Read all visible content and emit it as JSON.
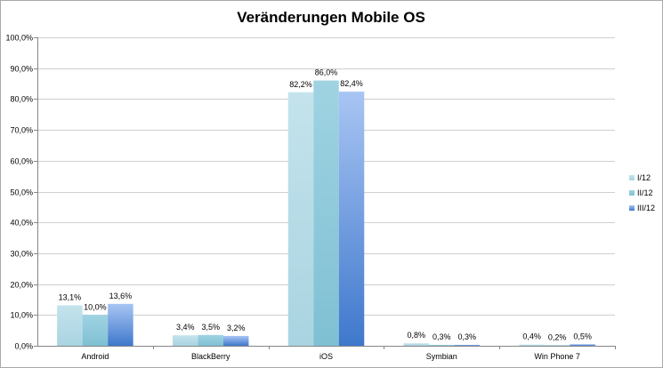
{
  "chart_data": {
    "type": "bar",
    "title": "Veränderungen Mobile OS",
    "categories": [
      "Android",
      "BlackBerry",
      "iOS",
      "Symbian",
      "Win Phone 7"
    ],
    "series": [
      {
        "name": "I/12",
        "values": [
          13.1,
          3.4,
          82.2,
          0.8,
          0.4
        ],
        "labels": [
          "13,1%",
          "3,4%",
          "82,2%",
          "0,8%",
          "0,4%"
        ],
        "color": "#b7dde8"
      },
      {
        "name": "II/12",
        "values": [
          10.0,
          3.5,
          86.0,
          0.3,
          0.2
        ],
        "labels": [
          "10,0%",
          "3,5%",
          "86,0%",
          "0,3%",
          "0,2%"
        ],
        "color": "#93cddd"
      },
      {
        "name": "III/12",
        "values": [
          13.6,
          3.2,
          82.4,
          0.3,
          0.5
        ],
        "labels": [
          "13,6%",
          "3,2%",
          "82,4%",
          "0,3%",
          "0,5%"
        ],
        "color": "#4f81bd"
      }
    ],
    "ylim": [
      0,
      100
    ],
    "yticks": [
      "0,0%",
      "10,0%",
      "20,0%",
      "30,0%",
      "40,0%",
      "50,0%",
      "60,0%",
      "70,0%",
      "80,0%",
      "90,0%",
      "100,0%"
    ],
    "grid": true,
    "legend": "right"
  }
}
